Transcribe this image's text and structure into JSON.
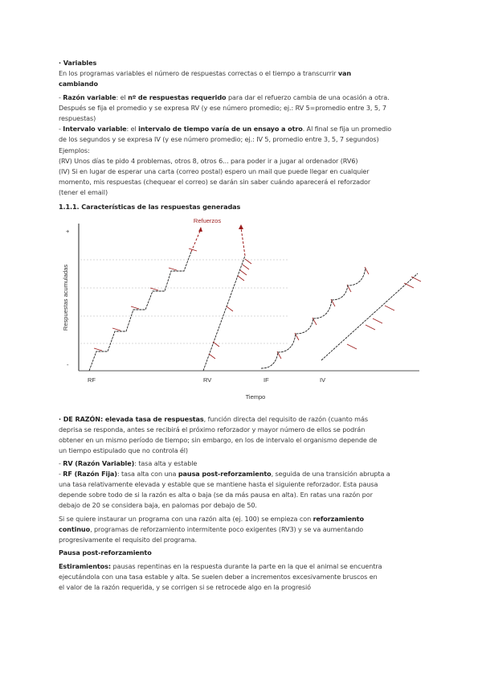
{
  "paragraphs": [
    {
      "id": "variables",
      "top": 72,
      "lines": [
        [
          {
            "t": "· Variables",
            "b": true
          }
        ],
        [
          {
            "t": "En los programas variables el número de respuestas correctas o el tiempo a transcurrir "
          },
          {
            "t": "van",
            "b": true
          }
        ],
        [
          {
            "t": "cambiando",
            "b": true
          }
        ]
      ]
    },
    {
      "id": "razon-intervalo-variable",
      "top": 115,
      "lines": [
        [
          {
            "t": "- "
          },
          {
            "t": "Razón variable",
            "b": true
          },
          {
            "t": ": el "
          },
          {
            "t": "nº de respuestas requerido",
            "b": true
          },
          {
            "t": " para dar el refuerzo cambia de una ocasión a otra."
          }
        ],
        [
          {
            "t": "Después se fija el promedio y se expresa RV (y ese número promedio; ej.: RV 5=promedio entre 3, 5, 7"
          }
        ],
        [
          {
            "t": "respuestas)"
          }
        ],
        [
          {
            "t": "- "
          },
          {
            "t": "Intervalo variable",
            "b": true
          },
          {
            "t": ": el "
          },
          {
            "t": "intervalo de tiempo varía de un ensayo a otro",
            "b": true
          },
          {
            "t": ". Al final se fija un promedio"
          }
        ],
        [
          {
            "t": "de los segundos y se expresa IV (y ese número promedio; ej.: IV 5, promedio entre 3, 5, 7 segundos)"
          }
        ]
      ]
    },
    {
      "id": "ejemplos",
      "top": 181,
      "lines": [
        [
          {
            "t": "Ejemplos:"
          }
        ],
        [
          {
            "t": "(RV) Unos días te pido 4 problemas, otros 8, otros 6... para poder ir a jugar al ordenador (RV6)"
          }
        ],
        [
          {
            "t": "(IV) Si en lugar de esperar una carta (correo postal) espero un mail que puede llegar en cualquier"
          }
        ],
        [
          {
            "t": "momento, mis respuestas (chequear el correo) se darán sin saber cuándo aparecerá el reforzador"
          }
        ],
        [
          {
            "t": "(tener el email)"
          }
        ]
      ]
    },
    {
      "id": "section-heading",
      "top": 251,
      "lines": [
        [
          {
            "t": "1.1.1. Características de las respuestas generadas",
            "b": true
          }
        ]
      ]
    },
    {
      "id": "de-razon",
      "top": 515,
      "lines": [
        [
          {
            "t": "· DE RAZÓN: elevada tasa de respuestas",
            "b": true
          },
          {
            "t": ", función directa del requisito de razón (cuanto más"
          }
        ],
        [
          {
            "t": "deprisa se responda, antes se recibirá el próximo reforzador y mayor número de ellos se podrán"
          }
        ],
        [
          {
            "t": "obtener en un mismo período de tiempo; sin embargo, en los de intervalo el organismo depende de"
          }
        ],
        [
          {
            "t": "un tiempo estipulado que no controla él)"
          }
        ]
      ]
    },
    {
      "id": "rv-rf",
      "top": 570,
      "lines": [
        [
          {
            "t": "- "
          },
          {
            "t": "RV (Razón Variable)",
            "b": true
          },
          {
            "t": ": tasa alta y estable"
          }
        ],
        [
          {
            "t": "- "
          },
          {
            "t": "RF (Razón Fija)",
            "b": true
          },
          {
            "t": ": tasa alta con una "
          },
          {
            "t": "pausa post-reforzamiento",
            "b": true
          },
          {
            "t": ", seguida de una transición abrupta a"
          }
        ],
        [
          {
            "t": "una tasa relativamente elevada y estable que se mantiene hasta el siguiente reforzador. Esta pausa"
          }
        ],
        [
          {
            "t": "depende sobre todo de si la razón es alta o baja (se da más pausa en alta). En ratas una razón por"
          }
        ],
        [
          {
            "t": "debajo de 20 se considera baja, en palomas por debajo de 50."
          }
        ]
      ]
    },
    {
      "id": "razon-alta",
      "top": 639,
      "lines": [
        [
          {
            "t": "Si se quiere instaurar un programa con una razón alta (ej. 100) se empieza con "
          },
          {
            "t": "reforzamiento",
            "b": true
          }
        ],
        [
          {
            "t": "continuo",
            "b": true
          },
          {
            "t": ", programas de reforzamiento intermitente poco exigentes (RV3) y se va aumentando"
          }
        ],
        [
          {
            "t": "progresivamente el requisito del programa."
          }
        ]
      ]
    },
    {
      "id": "pausa-heading",
      "top": 681,
      "lines": [
        [
          {
            "t": "Pausa post-reforzamiento",
            "b": true
          }
        ]
      ]
    },
    {
      "id": "estiramientos",
      "top": 698,
      "lines": [
        [
          {
            "t": "Estiramientos:",
            "b": true
          },
          {
            "t": " pausas repentinas en la respuesta durante la parte en la que el animal se encuentra"
          }
        ],
        [
          {
            "t": "ejecutándola con una tasa estable y alta. Se suelen deber a incrementos excesivamente bruscos en"
          }
        ],
        [
          {
            "t": "el valor de la razón requerida, y se corrigen si se retrocede algo en la progresió"
          }
        ]
      ]
    }
  ],
  "figure": {
    "y_label": "Respuestas acumuladas",
    "x_label": "Tiempo",
    "annotation": "Refuerzos",
    "curve_labels": [
      "RF",
      "RV",
      "IF",
      "IV"
    ],
    "y_ticks": [
      "+",
      "-"
    ],
    "colors": {
      "reinforcer": "#9b1c1c",
      "line": "#222222",
      "grid": "#cccccc"
    }
  }
}
